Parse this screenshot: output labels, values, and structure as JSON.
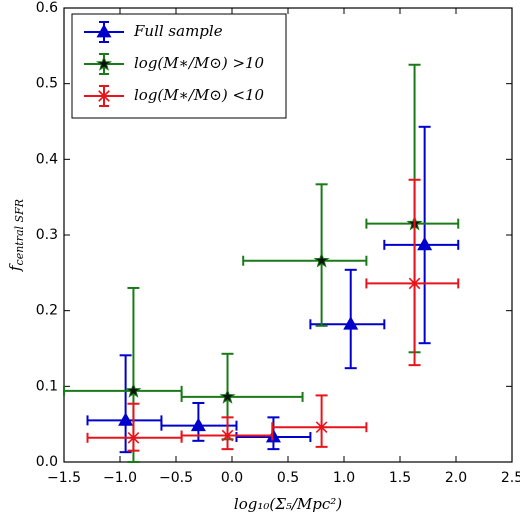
{
  "chart_data": {
    "type": "errorbar",
    "xlabel": "log₁₀(Σ₅/Mpc²)",
    "ylabel": {
      "main": "f",
      "sub": "central SFR"
    },
    "xlim": [
      -1.5,
      2.5
    ],
    "xticks": [
      {
        "value": -1.5,
        "label": "−1.5"
      },
      {
        "value": -1.0,
        "label": "−1.0"
      },
      {
        "value": -0.5,
        "label": "−0.5"
      },
      {
        "value": 0,
        "label": "0.0"
      },
      0.5,
      {
        "value": 1,
        "label": "1.0"
      },
      1.5,
      {
        "value": 2,
        "label": "2.0"
      },
      2.5
    ],
    "ylim": [
      0,
      0.6
    ],
    "yticks": [
      {
        "value": 0,
        "label": "0.0"
      },
      0.1,
      0.2,
      0.3,
      0.4,
      0.5,
      0.6
    ],
    "legend": "upper left",
    "series": [
      {
        "name": "Full sample",
        "color": "#0000cc",
        "marker": "triangle",
        "x": [
          -0.95,
          -0.3,
          0.37,
          1.06,
          1.72
        ],
        "values": [
          0.055,
          0.048,
          0.033,
          0.182,
          0.287
        ],
        "x_lower": [
          -1.29,
          -0.63,
          0.04,
          0.7,
          1.36
        ],
        "x_upper": [
          -0.63,
          0.04,
          0.7,
          1.36,
          2.02
        ],
        "y_lower": [
          0.013,
          0.028,
          0.017,
          0.124,
          0.157
        ],
        "y_upper": [
          0.141,
          0.078,
          0.059,
          0.254,
          0.443
        ]
      },
      {
        "name": "log(M∗/M⊙) >10",
        "color": "#1a7a1a",
        "marker": "star",
        "x": [
          -0.88,
          -0.04,
          0.8,
          1.63
        ],
        "values": [
          0.094,
          0.086,
          0.266,
          0.315
        ],
        "x_lower": [
          -1.5,
          -0.45,
          0.1,
          1.2
        ],
        "x_upper": [
          -0.45,
          0.63,
          1.2,
          2.02
        ],
        "y_lower": [
          0.0,
          0.03,
          0.18,
          0.145
        ],
        "y_upper": [
          0.23,
          0.143,
          0.367,
          0.525
        ]
      },
      {
        "name": "log(M∗/M⊙) <10",
        "color": "#e8141c",
        "marker": "asterisk",
        "x": [
          -0.88,
          -0.04,
          0.8,
          1.63
        ],
        "values": [
          0.032,
          0.035,
          0.046,
          0.236
        ],
        "x_lower": [
          -1.29,
          -0.45,
          0.36,
          1.2
        ],
        "x_upper": [
          -0.45,
          0.36,
          1.2,
          2.02
        ],
        "y_lower": [
          0.015,
          0.017,
          0.02,
          0.128
        ],
        "y_upper": [
          0.077,
          0.059,
          0.088,
          0.373
        ]
      }
    ]
  }
}
